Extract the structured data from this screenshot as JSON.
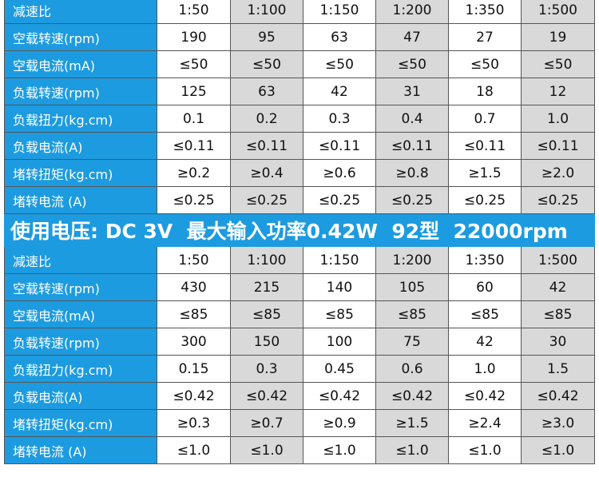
{
  "tables": [
    {
      "rows": [
        [
          "减速比",
          "1:50",
          "1:100",
          "1:150",
          "1:200",
          "1:350",
          "1:500"
        ],
        [
          "空载转速(rpm)",
          "190",
          "95",
          "63",
          "47",
          "27",
          "19"
        ],
        [
          "空载电流(mA)",
          "≤50",
          "≤50",
          "≤50",
          "≤50",
          "≤50",
          "≤50"
        ],
        [
          "负载转速(rpm)",
          "125",
          "63",
          "42",
          "31",
          "18",
          "12"
        ],
        [
          "负载扭力(kg.cm)",
          "0.1",
          "0.2",
          "0.3",
          "0.4",
          "0.7",
          "1.0"
        ],
        [
          "负载电流(A)",
          "≤0.11",
          "≤0.11",
          "≤0.11",
          "≤0.11",
          "≤0.11",
          "≤0.11"
        ],
        [
          "堵转扭矩(kg.cm)",
          "≥0.2",
          "≥0.4",
          "≥0.6",
          "≥0.8",
          "≥1.5",
          "≥2.0"
        ],
        [
          "堵转电流 (A)",
          "≤0.25",
          "≤0.25",
          "≤0.25",
          "≤0.25",
          "≤0.25",
          "≤0.25"
        ]
      ]
    },
    {
      "rows": [
        [
          "减速比",
          "1:50",
          "1:100",
          "1:150",
          "1:200",
          "1:350",
          "1:500"
        ],
        [
          "空载转速(rpm)",
          "430",
          "215",
          "140",
          "105",
          "60",
          "42"
        ],
        [
          "空载电流(mA)",
          "≤85",
          "≤85",
          "≤85",
          "≤85",
          "≤85",
          "≤85"
        ],
        [
          "负载转速(rpm)",
          "300",
          "150",
          "100",
          "75",
          "42",
          "30"
        ],
        [
          "负载扭力(kg.cm)",
          "0.15",
          "0.3",
          "0.45",
          "0.6",
          "1.0",
          "1.5"
        ],
        [
          "负载电流(A)",
          "≤0.42",
          "≤0.42",
          "≤0.42",
          "≤0.42",
          "≤0.42",
          "≤0.42"
        ],
        [
          "堵转扭矩(kg.cm)",
          "≥0.3",
          "≥0.7",
          "≥0.9",
          "≥1.5",
          "≥2.4",
          "≥3.0"
        ],
        [
          "堵转电流 (A)",
          "≤1.0",
          "≤1.0",
          "≤1.0",
          "≤1.0",
          "≤1.0",
          "≤1.0"
        ]
      ]
    }
  ],
  "banner": "使用电压: DC 3V  最大输入功率0.42W  92型  22000rpm"
}
